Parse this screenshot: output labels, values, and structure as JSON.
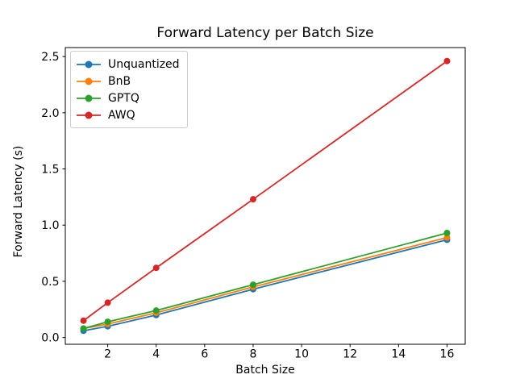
{
  "figure": {
    "background": "#ffffff",
    "axis_color": "#000000"
  },
  "chart_data": {
    "type": "line",
    "title": "Forward Latency per Batch Size",
    "xlabel": "Batch Size",
    "ylabel": "Forward Latency (s)",
    "x": [
      1,
      2,
      4,
      8,
      16
    ],
    "series": [
      {
        "name": "Unquantized",
        "color": "#1f77b4",
        "values": [
          0.06,
          0.1,
          0.2,
          0.43,
          0.87
        ]
      },
      {
        "name": "BnB",
        "color": "#ff7f0e",
        "values": [
          0.08,
          0.12,
          0.22,
          0.45,
          0.89
        ]
      },
      {
        "name": "GPTQ",
        "color": "#2ca02c",
        "values": [
          0.08,
          0.14,
          0.24,
          0.47,
          0.93
        ]
      },
      {
        "name": "AWQ",
        "color": "#d62728",
        "values": [
          0.15,
          0.31,
          0.62,
          1.23,
          2.46
        ]
      }
    ],
    "xlim": [
      0.25,
      16.75
    ],
    "ylim": [
      -0.06,
      2.58
    ],
    "xticks": [
      "2",
      "4",
      "6",
      "8",
      "10",
      "12",
      "14",
      "16"
    ],
    "yticks": [
      "0.0",
      "0.5",
      "1.0",
      "1.5",
      "2.0",
      "2.5"
    ],
    "grid": false,
    "legend_position": "upper left",
    "marker": "circle"
  }
}
